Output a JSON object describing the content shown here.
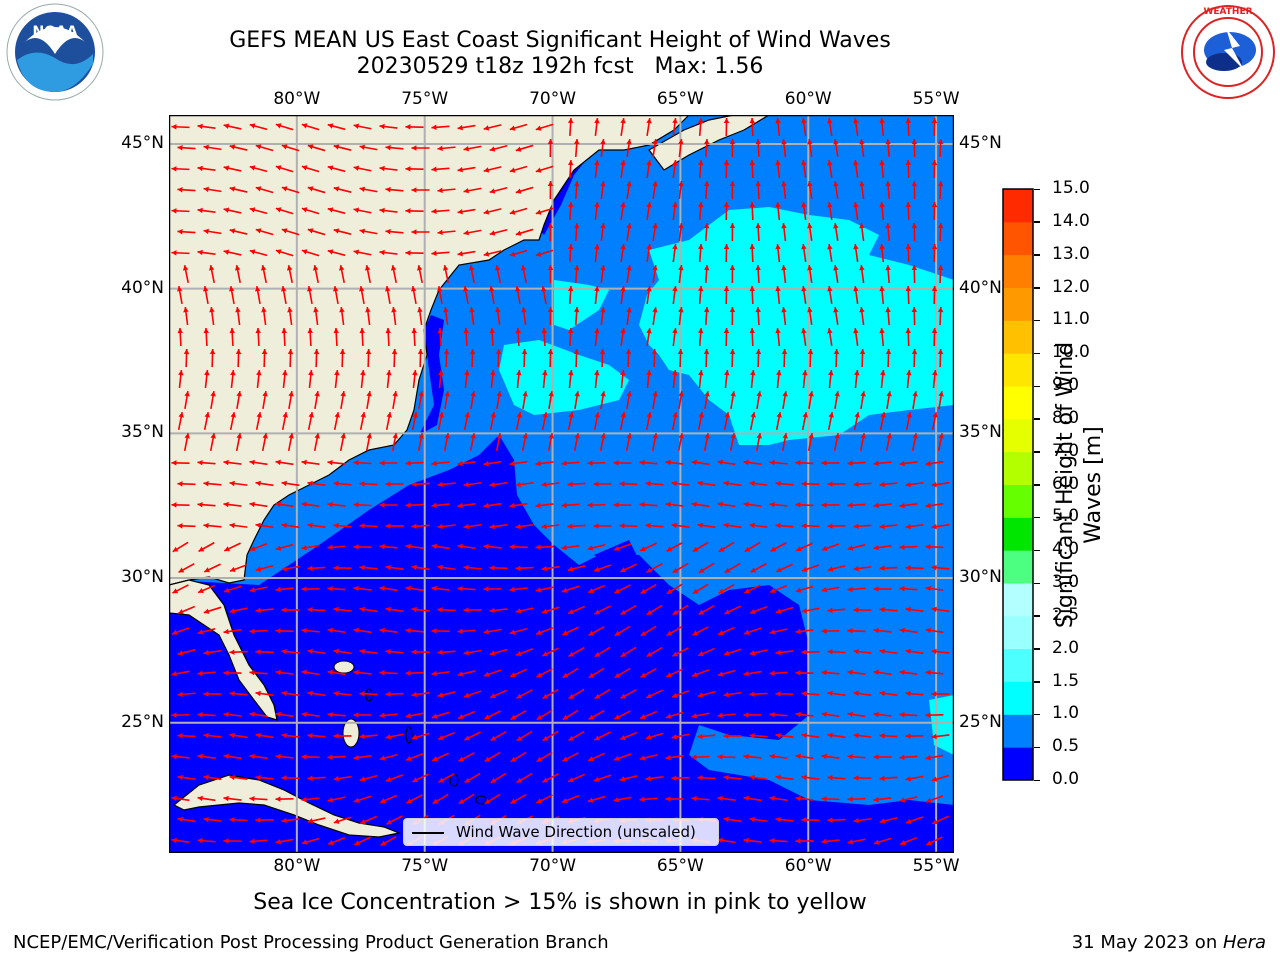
{
  "title": {
    "line1": "GEFS MEAN US East Coast Significant Height of Wind Waves",
    "line2": "20230529 t18z 192h fcst   Max: 1.56"
  },
  "logos": {
    "left": "NOAA",
    "right": "NATIONAL WEATHER SERVICE"
  },
  "map": {
    "lon_labels": [
      "80°W",
      "75°W",
      "70°W",
      "65°W",
      "60°W",
      "55°W"
    ],
    "lat_labels": [
      "45°N",
      "40°N",
      "35°N",
      "30°N",
      "25°N"
    ],
    "extent": {
      "lon": [
        -85,
        -54.3
      ],
      "lat": [
        20.5,
        46
      ]
    },
    "gridlines": true,
    "colors": {
      "land": "#efeedb",
      "ocean_0_0p5": "#0000ff",
      "ocean_0p5_1": "#0080ff",
      "ocean_1_1p5": "#00ffff",
      "arrow": "#ff0000",
      "grid": "#b0b0b0"
    },
    "legend": "Wind Wave Direction (unscaled)"
  },
  "colorbar": {
    "label": "Significant Height of Wind Waves [m]",
    "ticks": [
      "0.0",
      "0.5",
      "1.0",
      "1.5",
      "2.0",
      "2.5",
      "3.0",
      "4.0",
      "5.0",
      "6.0",
      "7.0",
      "8.0",
      "9.0",
      "10.0",
      "11.0",
      "12.0",
      "13.0",
      "14.0",
      "15.0"
    ],
    "colors": [
      "#0000ff",
      "#0080ff",
      "#00ffff",
      "#4dffff",
      "#99ffff",
      "#b3ffff",
      "#4dff80",
      "#00e600",
      "#66ff00",
      "#b3ff00",
      "#e6ff00",
      "#ffff00",
      "#ffe600",
      "#ffc000",
      "#ff9900",
      "#ff8000",
      "#ff5500",
      "#ff2a00",
      "#ff0000"
    ]
  },
  "caption": "Sea Ice Concentration > 15% is shown in pink to yellow",
  "footer": {
    "left": "NCEP/EMC/Verification Post Processing Product Generation Branch",
    "right_date": "31 May 2023 on ",
    "right_machine": "Hera"
  }
}
